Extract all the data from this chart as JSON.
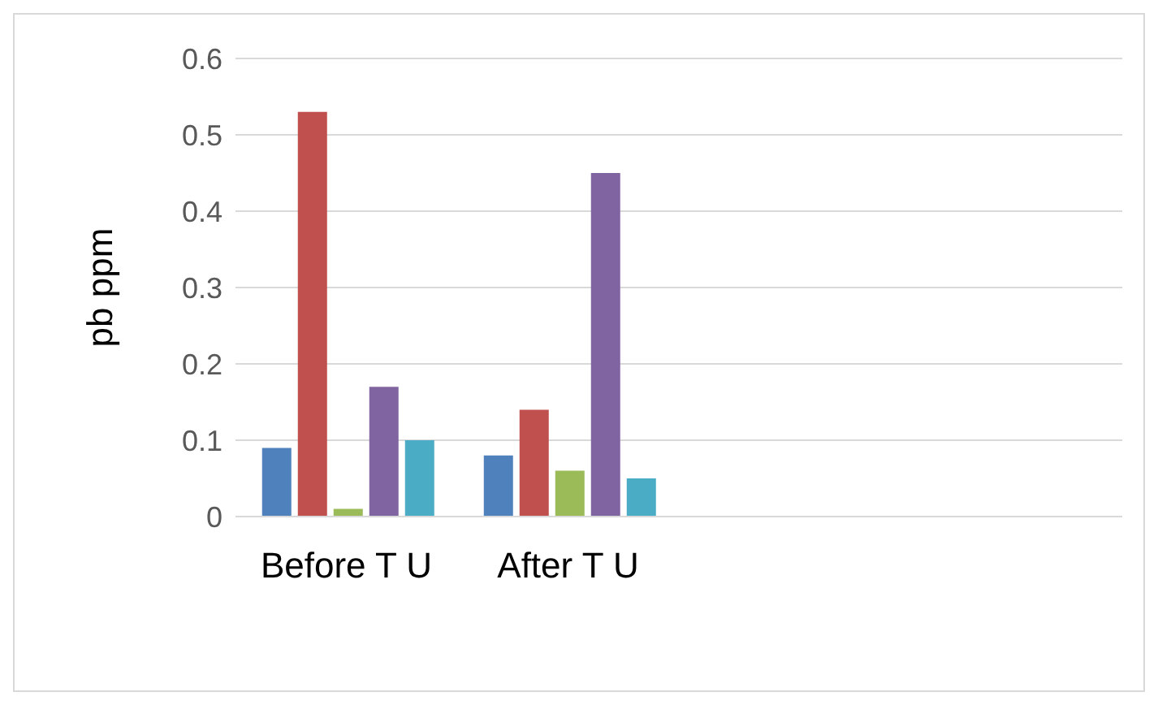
{
  "chart_data": {
    "type": "bar",
    "ylabel": "pb ppm",
    "categories": [
      "Before T U",
      "After T U",
      null,
      null
    ],
    "series": [
      {
        "color": "#4f81bd",
        "values": [
          0.09,
          0.08,
          null,
          null
        ]
      },
      {
        "color": "#c0504d",
        "values": [
          0.53,
          0.14,
          null,
          null
        ]
      },
      {
        "color": "#9bbb59",
        "values": [
          0.01,
          0.06,
          null,
          null
        ]
      },
      {
        "color": "#8064a2",
        "values": [
          0.17,
          0.45,
          null,
          null
        ]
      },
      {
        "color": "#4bacc6",
        "values": [
          0.1,
          0.05,
          null,
          null
        ]
      }
    ],
    "ylim": [
      0,
      0.6
    ],
    "yticks": [
      0,
      0.1,
      0.2,
      0.3,
      0.4,
      0.5,
      0.6
    ],
    "grid": "y",
    "legend": false
  }
}
